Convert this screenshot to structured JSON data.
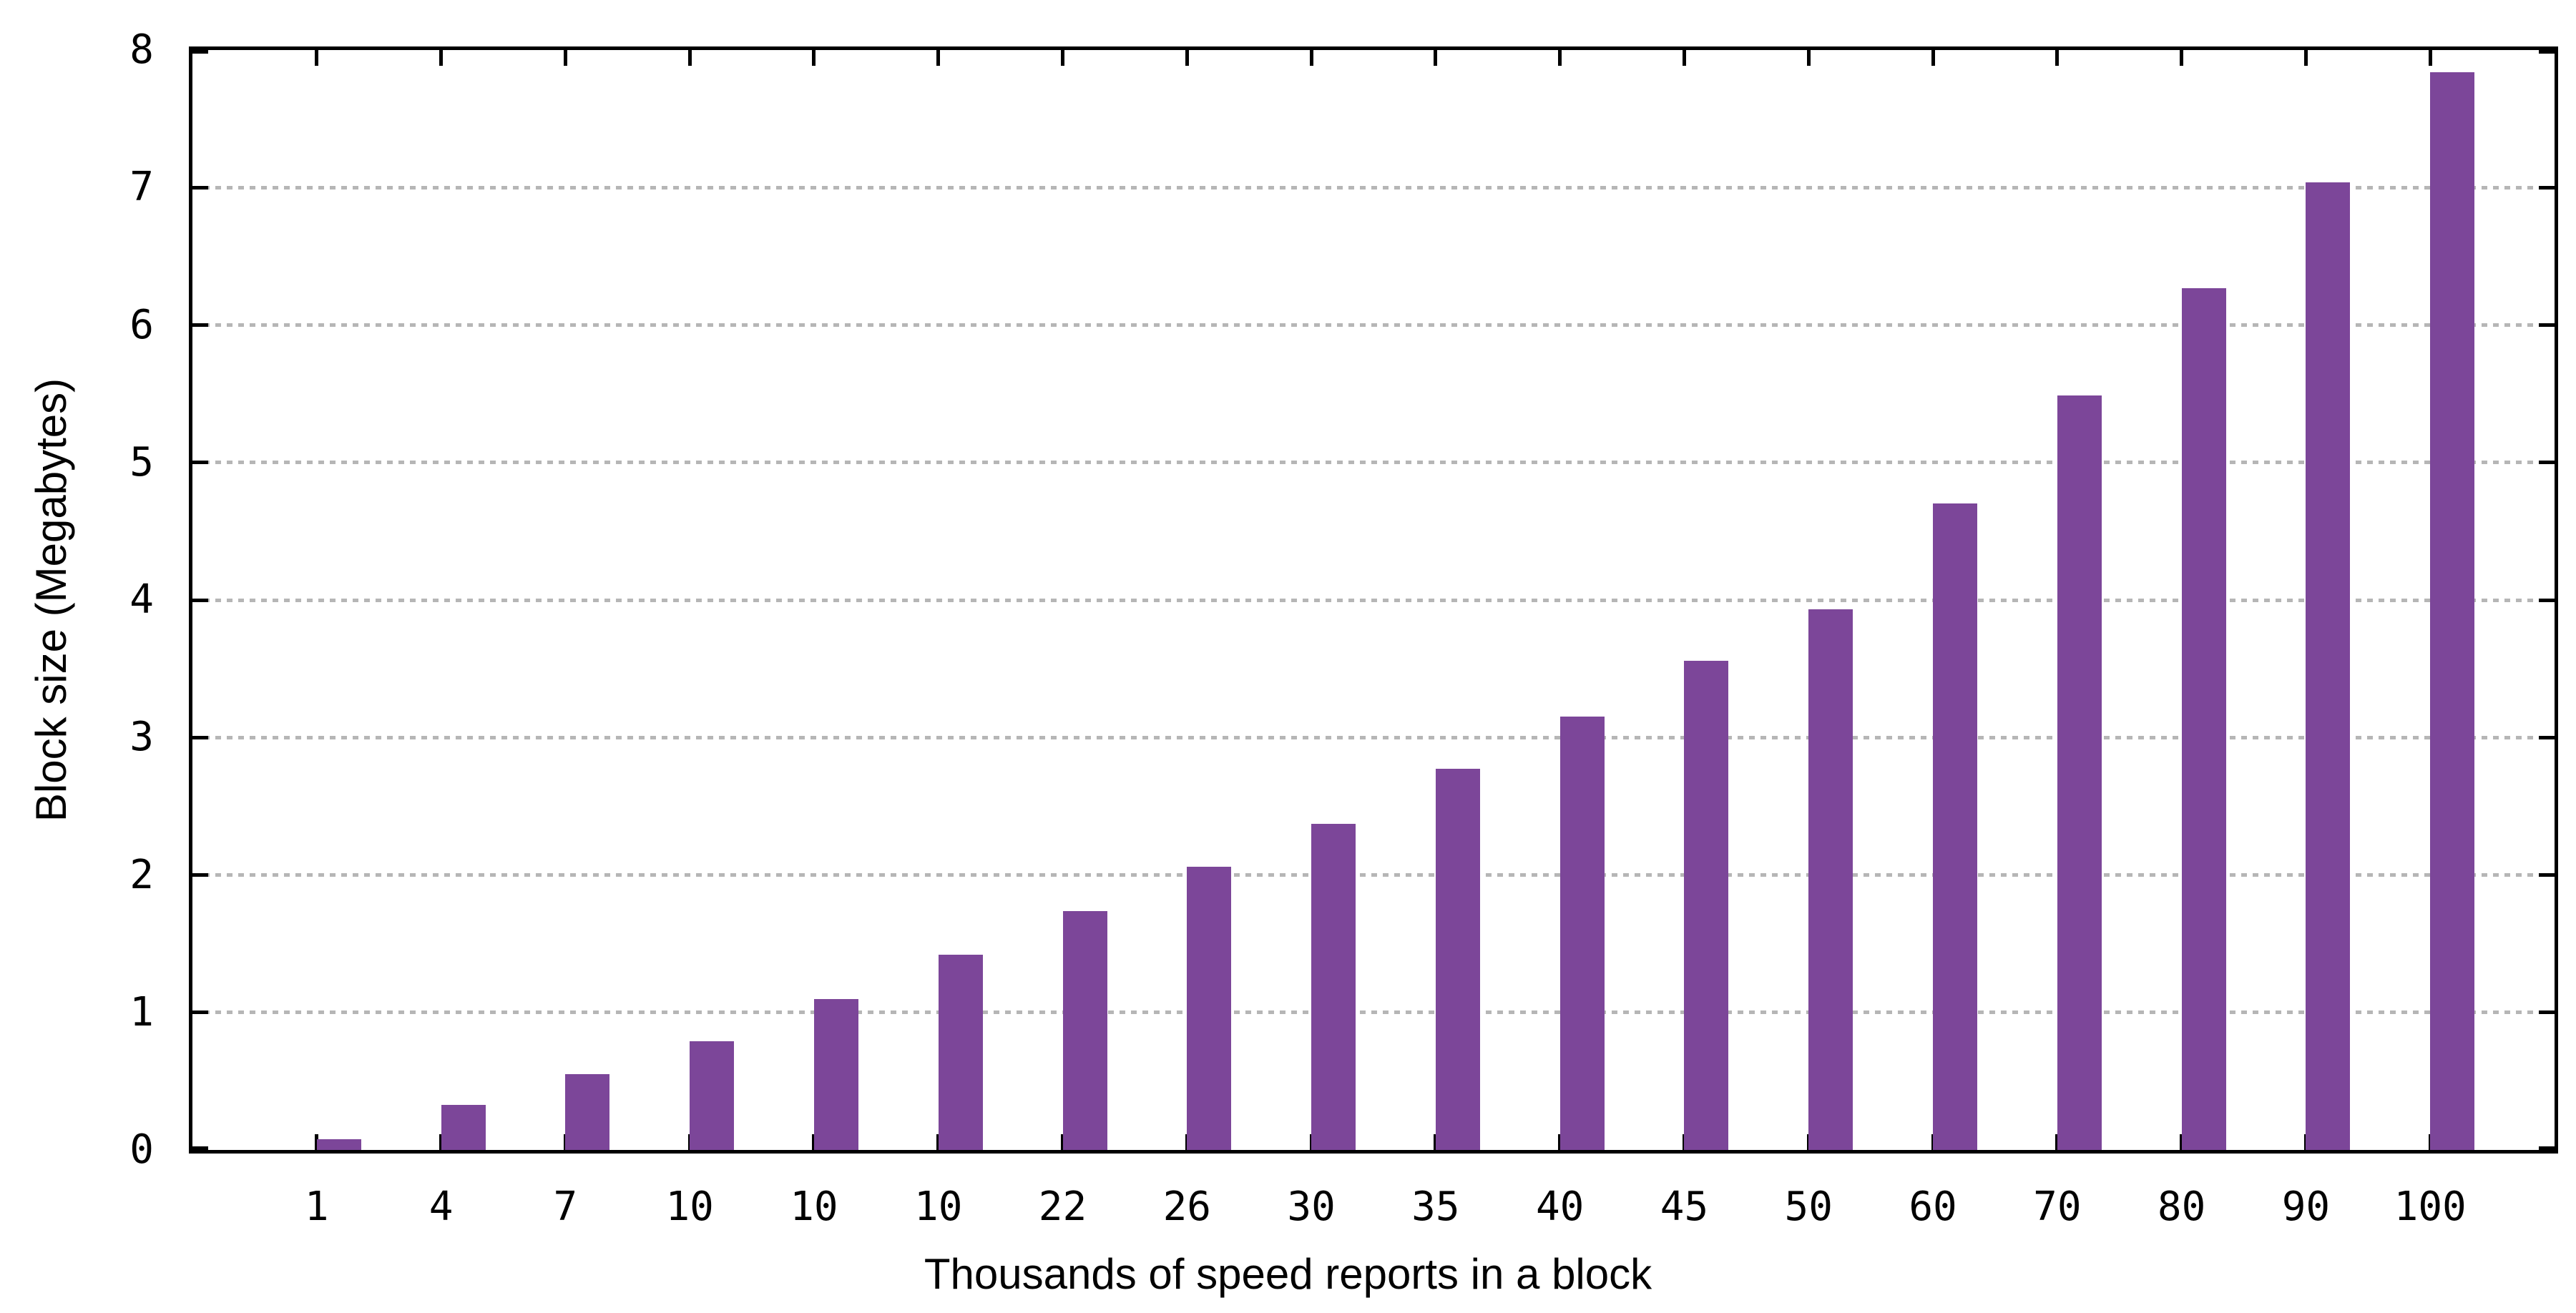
{
  "chart_data": {
    "type": "bar",
    "title": "",
    "xlabel": "Thousands of speed reports in a block",
    "ylabel": "Block size (Megabytes)",
    "categories": [
      "1",
      "4",
      "7",
      "10",
      "10",
      "10",
      "22",
      "26",
      "30",
      "35",
      "40",
      "45",
      "50",
      "60",
      "70",
      "80",
      "90",
      "100"
    ],
    "values": [
      0.08,
      0.33,
      0.55,
      0.79,
      1.1,
      1.42,
      1.74,
      2.06,
      2.37,
      2.77,
      3.15,
      3.56,
      3.93,
      4.7,
      5.49,
      6.27,
      7.04,
      7.84
    ],
    "ylim": [
      0,
      8
    ],
    "yticks": [
      0,
      1,
      2,
      3,
      4,
      5,
      6,
      7,
      8
    ],
    "ytick_labels": [
      "0",
      "1",
      "2",
      "3",
      "4",
      "5",
      "6",
      "7",
      "8"
    ],
    "grid": {
      "horizontal": true,
      "style": "dashed",
      "at": [
        1,
        2,
        3,
        4,
        5,
        6,
        7
      ]
    },
    "legend_position": "none",
    "colors": {
      "bar": "#7c4699",
      "grid": "#b6b6b6",
      "axis": "#000000",
      "text": "#000000",
      "background": "#ffffff"
    }
  }
}
